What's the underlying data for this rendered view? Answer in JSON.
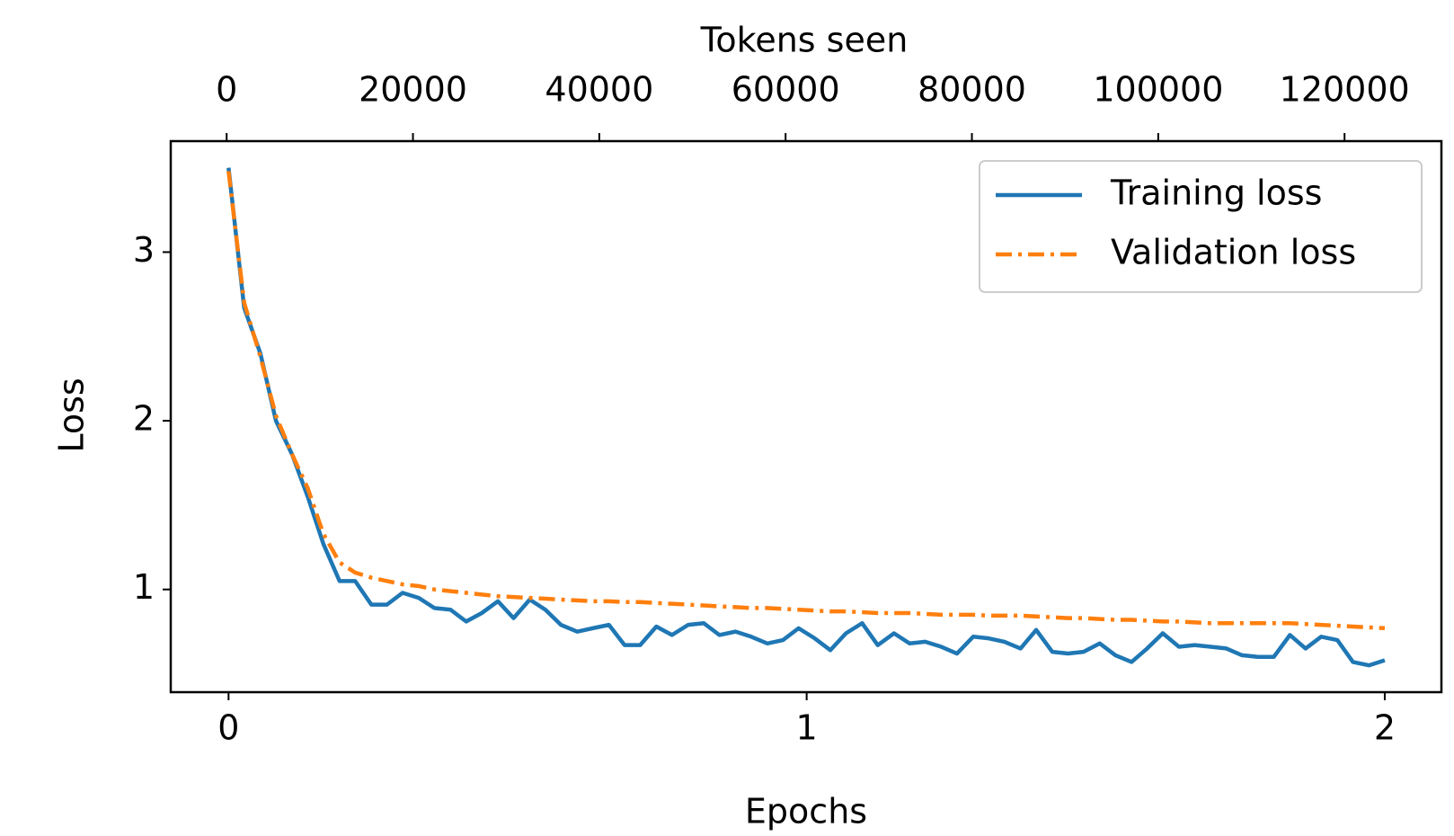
{
  "chart_data": {
    "type": "line",
    "xlabel": "Epochs",
    "ylabel": "Loss",
    "x2label": "Tokens seen",
    "x": [
      0,
      0.027,
      0.055,
      0.082,
      0.11,
      0.137,
      0.164,
      0.192,
      0.219,
      0.247,
      0.274,
      0.301,
      0.329,
      0.356,
      0.384,
      0.411,
      0.438,
      0.466,
      0.493,
      0.521,
      0.548,
      0.575,
      0.603,
      0.63,
      0.658,
      0.685,
      0.712,
      0.74,
      0.767,
      0.795,
      0.822,
      0.849,
      0.877,
      0.904,
      0.932,
      0.959,
      0.986,
      1.014,
      1.041,
      1.068,
      1.096,
      1.123,
      1.151,
      1.178,
      1.205,
      1.233,
      1.26,
      1.288,
      1.315,
      1.342,
      1.37,
      1.397,
      1.425,
      1.452,
      1.479,
      1.507,
      1.534,
      1.562,
      1.589,
      1.616,
      1.644,
      1.671,
      1.699,
      1.726,
      1.753,
      1.781,
      1.808,
      1.836,
      1.863,
      1.89,
      1.918,
      1.945,
      1.973,
      2.0
    ],
    "series": [
      {
        "name": "Training loss",
        "color": "#1f77b4",
        "linestyle": "solid",
        "values": [
          3.5,
          2.67,
          2.4,
          2.0,
          1.8,
          1.55,
          1.27,
          1.05,
          1.05,
          0.91,
          0.91,
          0.98,
          0.95,
          0.89,
          0.88,
          0.81,
          0.86,
          0.93,
          0.83,
          0.94,
          0.88,
          0.79,
          0.75,
          0.77,
          0.79,
          0.67,
          0.67,
          0.78,
          0.73,
          0.79,
          0.8,
          0.73,
          0.75,
          0.72,
          0.68,
          0.7,
          0.77,
          0.71,
          0.64,
          0.74,
          0.8,
          0.67,
          0.74,
          0.68,
          0.69,
          0.66,
          0.62,
          0.72,
          0.71,
          0.69,
          0.65,
          0.76,
          0.63,
          0.62,
          0.63,
          0.68,
          0.61,
          0.57,
          0.65,
          0.74,
          0.66,
          0.67,
          0.66,
          0.65,
          0.61,
          0.6,
          0.6,
          0.73,
          0.65,
          0.72,
          0.7,
          0.57,
          0.55,
          0.58
        ]
      },
      {
        "name": "Validation loss",
        "color": "#ff7f0e",
        "linestyle": "dashdot",
        "values": [
          3.48,
          2.7,
          2.38,
          2.03,
          1.8,
          1.6,
          1.33,
          1.16,
          1.1,
          1.07,
          1.05,
          1.03,
          1.02,
          1.0,
          0.99,
          0.98,
          0.97,
          0.96,
          0.955,
          0.95,
          0.945,
          0.94,
          0.935,
          0.93,
          0.93,
          0.925,
          0.925,
          0.92,
          0.915,
          0.91,
          0.905,
          0.9,
          0.895,
          0.89,
          0.89,
          0.885,
          0.88,
          0.875,
          0.87,
          0.87,
          0.865,
          0.86,
          0.86,
          0.86,
          0.855,
          0.85,
          0.85,
          0.85,
          0.845,
          0.845,
          0.845,
          0.84,
          0.835,
          0.83,
          0.83,
          0.825,
          0.82,
          0.82,
          0.815,
          0.81,
          0.81,
          0.805,
          0.8,
          0.8,
          0.8,
          0.8,
          0.8,
          0.8,
          0.795,
          0.79,
          0.785,
          0.78,
          0.775,
          0.77
        ]
      }
    ],
    "xlim": [
      -0.1,
      2.098
    ],
    "xticks": [
      0,
      1,
      2
    ],
    "ylim": [
      0.391,
      3.658
    ],
    "yticks": [
      1,
      2,
      3
    ],
    "x2lim": [
      -6000,
      130400
    ],
    "x2ticks": [
      0,
      20000,
      40000,
      60000,
      80000,
      100000,
      120000
    ],
    "legend": "upper right",
    "grid": false
  }
}
